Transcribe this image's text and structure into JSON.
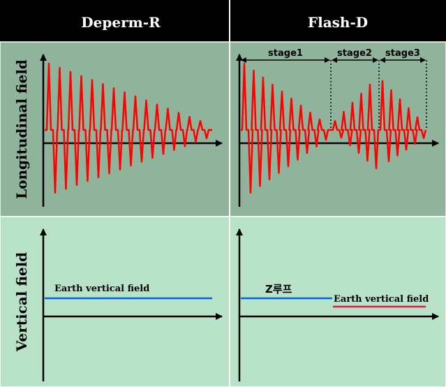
{
  "columns": [
    {
      "label": "Deperm-R"
    },
    {
      "label": "Flash-D"
    }
  ],
  "rows": [
    {
      "label": "Longitudinal field"
    },
    {
      "label": "Vertical field"
    }
  ],
  "flash_stages": [
    "stage1",
    "stage2",
    "stage3"
  ],
  "annotations": {
    "earth_vertical_field": "Earth vertical field",
    "z_loop": "Z루프"
  },
  "colors": {
    "header_bg": "#000000",
    "longitudinal_bg": "#8fb39b",
    "vertical_bg": "#b8e3c9",
    "signal": "#ff0000",
    "earth_field_line": "#0066dd",
    "flash_earth_field_line": "#dd1155"
  }
}
